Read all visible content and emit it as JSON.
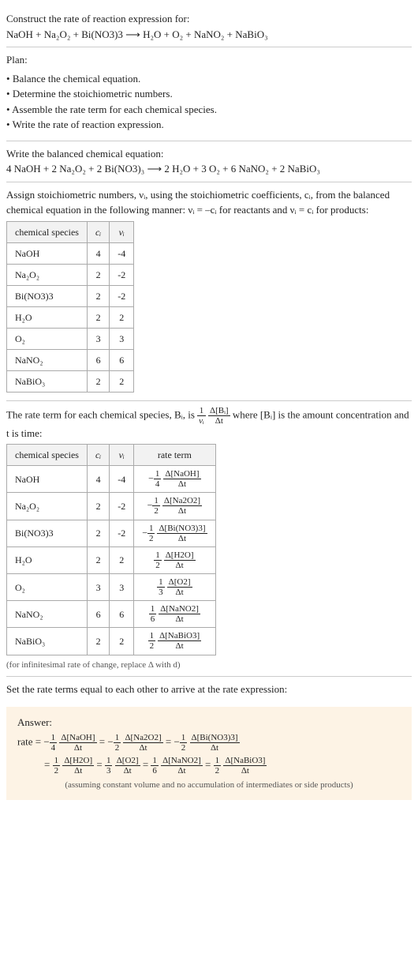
{
  "header": {
    "prompt": "Construct the rate of reaction expression for:",
    "equation": "NaOH + Na₂O₂ + Bi(NO3)3 ⟶ H₂O + O₂ + NaNO₂ + NaBiO₃"
  },
  "plan": {
    "title": "Plan:",
    "items": [
      "Balance the chemical equation.",
      "Determine the stoichiometric numbers.",
      "Assemble the rate term for each chemical species.",
      "Write the rate of reaction expression."
    ]
  },
  "balanced": {
    "title": "Write the balanced chemical equation:",
    "equation": "4 NaOH + 2 Na₂O₂ + 2 Bi(NO3)₃ ⟶ 2 H₂O + 3 O₂ + 6 NaNO₂ + 2 NaBiO₃"
  },
  "stoich_text": {
    "line1": "Assign stoichiometric numbers, νᵢ, using the stoichiometric coefficients, cᵢ, from the balanced chemical equation in the following manner: νᵢ = –cᵢ for reactants and νᵢ = cᵢ for products:"
  },
  "table1": {
    "headers": [
      "chemical species",
      "cᵢ",
      "νᵢ"
    ],
    "rows": [
      [
        "NaOH",
        "4",
        "-4"
      ],
      [
        "Na₂O₂",
        "2",
        "-2"
      ],
      [
        "Bi(NO3)3",
        "2",
        "-2"
      ],
      [
        "H₂O",
        "2",
        "2"
      ],
      [
        "O₂",
        "3",
        "3"
      ],
      [
        "NaNO₂",
        "6",
        "6"
      ],
      [
        "NaBiO₃",
        "2",
        "2"
      ]
    ]
  },
  "rateterm_text": {
    "pre": "The rate term for each chemical species, Bᵢ, is ",
    "frac1": {
      "n": "1",
      "d": "νᵢ"
    },
    "frac2": {
      "n": "Δ[Bᵢ]",
      "d": "Δt"
    },
    "post": " where [Bᵢ] is the amount concentration and t is time:"
  },
  "table2": {
    "headers": [
      "chemical species",
      "cᵢ",
      "νᵢ",
      "rate term"
    ],
    "rows": [
      {
        "sp": "NaOH",
        "c": "4",
        "v": "-4",
        "sign": "−",
        "fn": "1",
        "fd": "4",
        "dn": "Δ[NaOH]",
        "dd": "Δt"
      },
      {
        "sp": "Na₂O₂",
        "c": "2",
        "v": "-2",
        "sign": "−",
        "fn": "1",
        "fd": "2",
        "dn": "Δ[Na2O2]",
        "dd": "Δt"
      },
      {
        "sp": "Bi(NO3)3",
        "c": "2",
        "v": "-2",
        "sign": "−",
        "fn": "1",
        "fd": "2",
        "dn": "Δ[Bi(NO3)3]",
        "dd": "Δt"
      },
      {
        "sp": "H₂O",
        "c": "2",
        "v": "2",
        "sign": "",
        "fn": "1",
        "fd": "2",
        "dn": "Δ[H2O]",
        "dd": "Δt"
      },
      {
        "sp": "O₂",
        "c": "3",
        "v": "3",
        "sign": "",
        "fn": "1",
        "fd": "3",
        "dn": "Δ[O2]",
        "dd": "Δt"
      },
      {
        "sp": "NaNO₂",
        "c": "6",
        "v": "6",
        "sign": "",
        "fn": "1",
        "fd": "6",
        "dn": "Δ[NaNO2]",
        "dd": "Δt"
      },
      {
        "sp": "NaBiO₃",
        "c": "2",
        "v": "2",
        "sign": "",
        "fn": "1",
        "fd": "2",
        "dn": "Δ[NaBiO3]",
        "dd": "Δt"
      }
    ],
    "footnote": "(for infinitesimal rate of change, replace Δ with d)"
  },
  "set_text": "Set the rate terms equal to each other to arrive at the rate expression:",
  "answer": {
    "label": "Answer:",
    "prefix": "rate = ",
    "terms": [
      {
        "sign": "−",
        "fn": "1",
        "fd": "4",
        "dn": "Δ[NaOH]",
        "dd": "Δt"
      },
      {
        "sign": "−",
        "fn": "1",
        "fd": "2",
        "dn": "Δ[Na2O2]",
        "dd": "Δt"
      },
      {
        "sign": "−",
        "fn": "1",
        "fd": "2",
        "dn": "Δ[Bi(NO3)3]",
        "dd": "Δt"
      },
      {
        "sign": "",
        "fn": "1",
        "fd": "2",
        "dn": "Δ[H2O]",
        "dd": "Δt"
      },
      {
        "sign": "",
        "fn": "1",
        "fd": "3",
        "dn": "Δ[O2]",
        "dd": "Δt"
      },
      {
        "sign": "",
        "fn": "1",
        "fd": "6",
        "dn": "Δ[NaNO2]",
        "dd": "Δt"
      },
      {
        "sign": "",
        "fn": "1",
        "fd": "2",
        "dn": "Δ[NaBiO3]",
        "dd": "Δt"
      }
    ],
    "note": "(assuming constant volume and no accumulation of intermediates or side products)"
  },
  "colors": {
    "answer_bg": "#fdf3e5",
    "border": "#aaa"
  }
}
